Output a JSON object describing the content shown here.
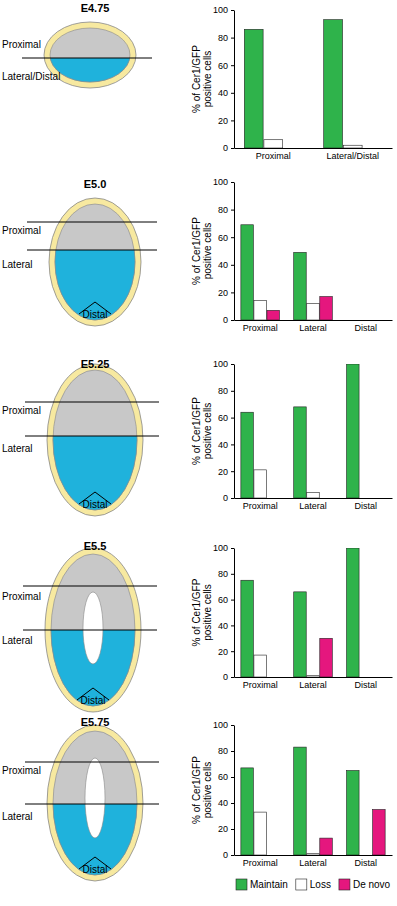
{
  "chart_data": [
    {
      "type": "bar",
      "categories": [
        "Proximal",
        "Lateral/Distal"
      ],
      "series": [
        {
          "name": "Maintain",
          "color": "#2fb34b",
          "values": [
            86,
            93
          ]
        },
        {
          "name": "Loss",
          "color": "#ffffff",
          "values": [
            6,
            2
          ]
        },
        {
          "name": "De novo",
          "color": "#e5177e",
          "values": [
            0,
            0
          ]
        }
      ],
      "y_label": "% of Cer1/GFP positive cells",
      "ylim": [
        0,
        100
      ],
      "yticks": [
        0,
        20,
        40,
        60,
        80,
        100
      ]
    },
    {
      "type": "bar",
      "categories": [
        "Proximal",
        "Lateral",
        "Distal"
      ],
      "series": [
        {
          "name": "Maintain",
          "color": "#2fb34b",
          "values": [
            69,
            49,
            0
          ]
        },
        {
          "name": "Loss",
          "color": "#ffffff",
          "values": [
            14,
            12,
            0
          ]
        },
        {
          "name": "De novo",
          "color": "#e5177e",
          "values": [
            7,
            17,
            0
          ]
        }
      ],
      "y_label": "% of Cer1/GFP positive cells",
      "ylim": [
        0,
        100
      ],
      "yticks": [
        0,
        20,
        40,
        60,
        80,
        100
      ]
    },
    {
      "type": "bar",
      "categories": [
        "Proximal",
        "Lateral",
        "Distal"
      ],
      "series": [
        {
          "name": "Maintain",
          "color": "#2fb34b",
          "values": [
            64,
            68,
            100
          ]
        },
        {
          "name": "Loss",
          "color": "#ffffff",
          "values": [
            21,
            4,
            0
          ]
        },
        {
          "name": "De novo",
          "color": "#e5177e",
          "values": [
            0,
            0,
            0
          ]
        }
      ],
      "y_label": "% of Cer1/GFP positive cells",
      "ylim": [
        0,
        100
      ],
      "yticks": [
        0,
        20,
        40,
        60,
        80,
        100
      ]
    },
    {
      "type": "bar",
      "categories": [
        "Proximal",
        "Lateral",
        "Distal"
      ],
      "series": [
        {
          "name": "Maintain",
          "color": "#2fb34b",
          "values": [
            75,
            66,
            100
          ]
        },
        {
          "name": "Loss",
          "color": "#ffffff",
          "values": [
            17,
            1,
            0
          ]
        },
        {
          "name": "De novo",
          "color": "#e5177e",
          "values": [
            0,
            30,
            0
          ]
        }
      ],
      "y_label": "% of Cer1/GFP positive cells",
      "ylim": [
        0,
        100
      ],
      "yticks": [
        0,
        20,
        40,
        60,
        80,
        100
      ]
    },
    {
      "type": "bar",
      "categories": [
        "Proximal",
        "Lateral",
        "Distal"
      ],
      "series": [
        {
          "name": "Maintain",
          "color": "#2fb34b",
          "values": [
            67,
            83,
            65
          ]
        },
        {
          "name": "Loss",
          "color": "#ffffff",
          "values": [
            33,
            1,
            0
          ]
        },
        {
          "name": "De novo",
          "color": "#e5177e",
          "values": [
            0,
            13,
            35
          ]
        }
      ],
      "y_label": "% of Cer1/GFP positive cells",
      "ylim": [
        0,
        100
      ],
      "yticks": [
        0,
        20,
        40,
        60,
        80,
        100
      ],
      "legend": "bottom"
    }
  ],
  "diagrams": [
    {
      "stage": "E4.75",
      "regions": [
        "Proximal",
        "Lateral/Distal"
      ]
    },
    {
      "stage": "E5.0",
      "regions": [
        "Proximal",
        "Lateral",
        "Distal"
      ]
    },
    {
      "stage": "E5.25",
      "regions": [
        "Proximal",
        "Lateral",
        "Distal"
      ]
    },
    {
      "stage": "E5.5",
      "regions": [
        "Proximal",
        "Lateral",
        "Distal"
      ]
    },
    {
      "stage": "E5.75",
      "regions": [
        "Proximal",
        "Lateral",
        "Distal"
      ]
    }
  ]
}
